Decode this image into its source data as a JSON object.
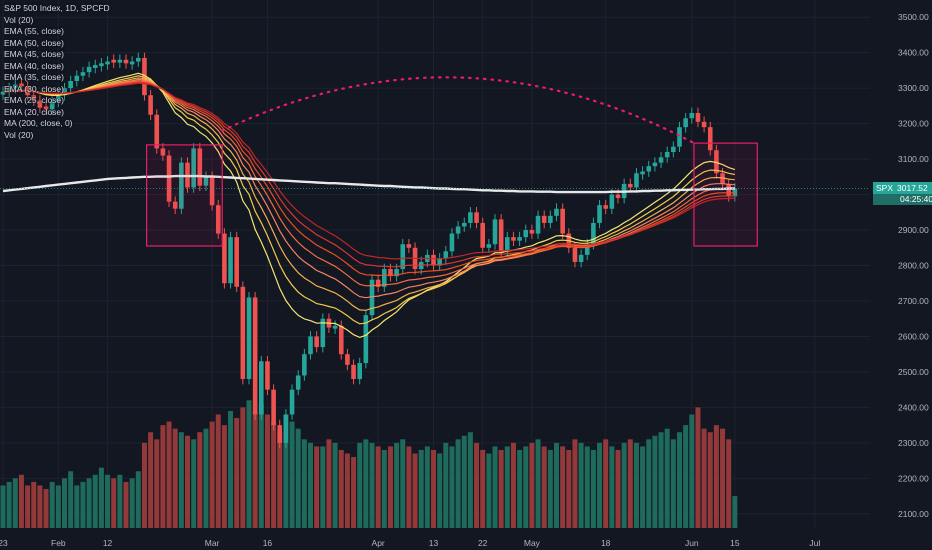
{
  "title": "S&P 500 Index, 1D, SPCFD",
  "legend_lines": [
    "Vol (20)",
    "EMA (55, close)",
    "EMA (50, close)",
    "EMA (45, close)",
    "EMA (40, close)",
    "EMA (35, close)",
    "EMA (30, close)",
    "EMA (25, close)",
    "EMA (20, close)",
    "MA (200, close, 0)",
    "Vol (20)"
  ],
  "price_tag": {
    "symbol": "SPX",
    "value": "3017.52",
    "countdown": "04:25:40"
  },
  "colors": {
    "up": "#26a69a",
    "down": "#ef5350",
    "background": "#131722",
    "ma200": "#e8e8e8",
    "box": "#e91e63",
    "dotted_arc": "#e91e63"
  },
  "chart_data": {
    "type": "candlestick",
    "title": "S&P 500 Index, 1D, SPCFD",
    "ylim": [
      2060,
      3540
    ],
    "y_ticks": [
      2100,
      2200,
      2300,
      2400,
      2500,
      2600,
      2700,
      2800,
      2900,
      3000,
      3100,
      3200,
      3300,
      3400,
      3500
    ],
    "x_ticks": [
      "23",
      "Feb",
      "12",
      "Mar",
      "16",
      "Apr",
      "13",
      "22",
      "May",
      "18",
      "Jun",
      "15",
      "Jul"
    ],
    "candles_close": [
      3290,
      3300,
      3310,
      3305,
      3280,
      3265,
      3245,
      3240,
      3262,
      3280,
      3300,
      3320,
      3335,
      3345,
      3360,
      3365,
      3370,
      3375,
      3372,
      3380,
      3370,
      3375,
      3385,
      3280,
      3225,
      3130,
      3110,
      2980,
      2960,
      3090,
      3020,
      3130,
      3025,
      3050,
      2970,
      2890,
      2750,
      2880,
      2740,
      2480,
      2710,
      2380,
      2530,
      2450,
      2350,
      2300,
      2380,
      2450,
      2490,
      2550,
      2600,
      2570,
      2650,
      2625,
      2630,
      2550,
      2520,
      2480,
      2525,
      2660,
      2760,
      2740,
      2790,
      2770,
      2790,
      2860,
      2850,
      2790,
      2810,
      2830,
      2800,
      2820,
      2840,
      2890,
      2910,
      2920,
      2950,
      2920,
      2850,
      2860,
      2930,
      2840,
      2880,
      2870,
      2880,
      2900,
      2890,
      2940,
      2920,
      2940,
      2960,
      2890,
      2850,
      2810,
      2830,
      2860,
      2920,
      2970,
      2960,
      3000,
      2990,
      3030,
      3020,
      3060,
      3065,
      3080,
      3090,
      3105,
      3120,
      3135,
      3190,
      3215,
      3230,
      3205,
      3190,
      3125,
      3060,
      3030,
      2995,
      3017
    ],
    "candles_up": [
      true,
      true,
      true,
      false,
      false,
      false,
      false,
      false,
      true,
      true,
      true,
      true,
      true,
      true,
      true,
      true,
      true,
      true,
      false,
      true,
      false,
      true,
      true,
      false,
      false,
      false,
      false,
      false,
      false,
      true,
      false,
      true,
      false,
      true,
      false,
      false,
      false,
      true,
      false,
      false,
      true,
      false,
      true,
      false,
      false,
      false,
      true,
      true,
      true,
      true,
      true,
      false,
      true,
      false,
      true,
      false,
      false,
      false,
      true,
      true,
      true,
      false,
      true,
      false,
      true,
      true,
      false,
      false,
      true,
      true,
      false,
      true,
      true,
      true,
      true,
      true,
      true,
      false,
      false,
      true,
      true,
      false,
      true,
      false,
      true,
      true,
      false,
      true,
      false,
      true,
      true,
      false,
      false,
      false,
      true,
      true,
      true,
      true,
      false,
      true,
      false,
      true,
      false,
      true,
      true,
      true,
      true,
      true,
      true,
      true,
      true,
      true,
      true,
      false,
      false,
      false,
      false,
      false,
      false,
      true
    ],
    "volume": [
      2180,
      2190,
      2200,
      2210,
      2180,
      2190,
      2180,
      2170,
      2190,
      2180,
      2200,
      2220,
      2180,
      2190,
      2200,
      2210,
      2230,
      2210,
      2200,
      2210,
      2190,
      2200,
      2220,
      2300,
      2330,
      2310,
      2350,
      2360,
      2340,
      2330,
      2320,
      2310,
      2330,
      2340,
      2360,
      2380,
      2350,
      2390,
      2370,
      2400,
      2420,
      2390,
      2410,
      2380,
      2360,
      2330,
      2380,
      2360,
      2340,
      2310,
      2300,
      2290,
      2290,
      2310,
      2300,
      2280,
      2270,
      2260,
      2300,
      2310,
      2300,
      2290,
      2280,
      2290,
      2300,
      2310,
      2290,
      2270,
      2280,
      2290,
      2280,
      2270,
      2300,
      2290,
      2310,
      2320,
      2330,
      2300,
      2280,
      2270,
      2290,
      2280,
      2290,
      2300,
      2280,
      2290,
      2300,
      2310,
      2290,
      2280,
      2300,
      2290,
      2280,
      2310,
      2300,
      2290,
      2280,
      2300,
      2310,
      2290,
      2280,
      2300,
      2310,
      2300,
      2290,
      2310,
      2320,
      2330,
      2340,
      2310,
      2330,
      2350,
      2380,
      2400,
      2340,
      2330,
      2350,
      2340,
      2310,
      2150
    ],
    "ma200": [
      3010,
      3012,
      3014,
      3016,
      3018,
      3020,
      3022,
      3024,
      3026,
      3028,
      3030,
      3032,
      3034,
      3036,
      3038,
      3040,
      3042,
      3044,
      3045,
      3046,
      3047,
      3048,
      3049,
      3050,
      3050,
      3051,
      3051,
      3051,
      3052,
      3052,
      3052,
      3052,
      3052,
      3051,
      3051,
      3050,
      3049,
      3048,
      3047,
      3046,
      3045,
      3044,
      3043,
      3042,
      3041,
      3040,
      3039,
      3038,
      3037,
      3036,
      3035,
      3034,
      3033,
      3032,
      3032,
      3031,
      3030,
      3029,
      3028,
      3027,
      3026,
      3025,
      3024,
      3024,
      3023,
      3022,
      3021,
      3020,
      3020,
      3019,
      3018,
      3017,
      3017,
      3016,
      3015,
      3015,
      3014,
      3013,
      3012,
      3012,
      3011,
      3011,
      3010,
      3010,
      3009,
      3009,
      3009,
      3008,
      3008,
      3008,
      3007,
      3007,
      3007,
      3007,
      3007,
      3007,
      3007,
      3007,
      3007,
      3008,
      3008,
      3008,
      3009,
      3009,
      3010,
      3010,
      3011,
      3011,
      3012,
      3012,
      3013,
      3013,
      3014,
      3014,
      3015,
      3015,
      3016,
      3016,
      3017,
      3017
    ],
    "ema_periods": [
      20,
      25,
      30,
      35,
      40,
      45,
      50,
      55
    ],
    "ema_colors": [
      "#fff176",
      "#ffd54f",
      "#ffb74d",
      "#ff8a65",
      "#ff7043",
      "#f4511e",
      "#e53935",
      "#c62828"
    ],
    "annotation_boxes": [
      {
        "start_index": 24,
        "end_index": 35,
        "y_high": 3140,
        "y_low": 2855
      },
      {
        "start_index": 113,
        "end_index": 122,
        "y_high": 3145,
        "y_low": 2855
      }
    ],
    "dotted_arc": {
      "start_index": 35,
      "end_index": 113,
      "y_peak": 3330,
      "y_start": 3180,
      "y_end": 3145
    }
  }
}
